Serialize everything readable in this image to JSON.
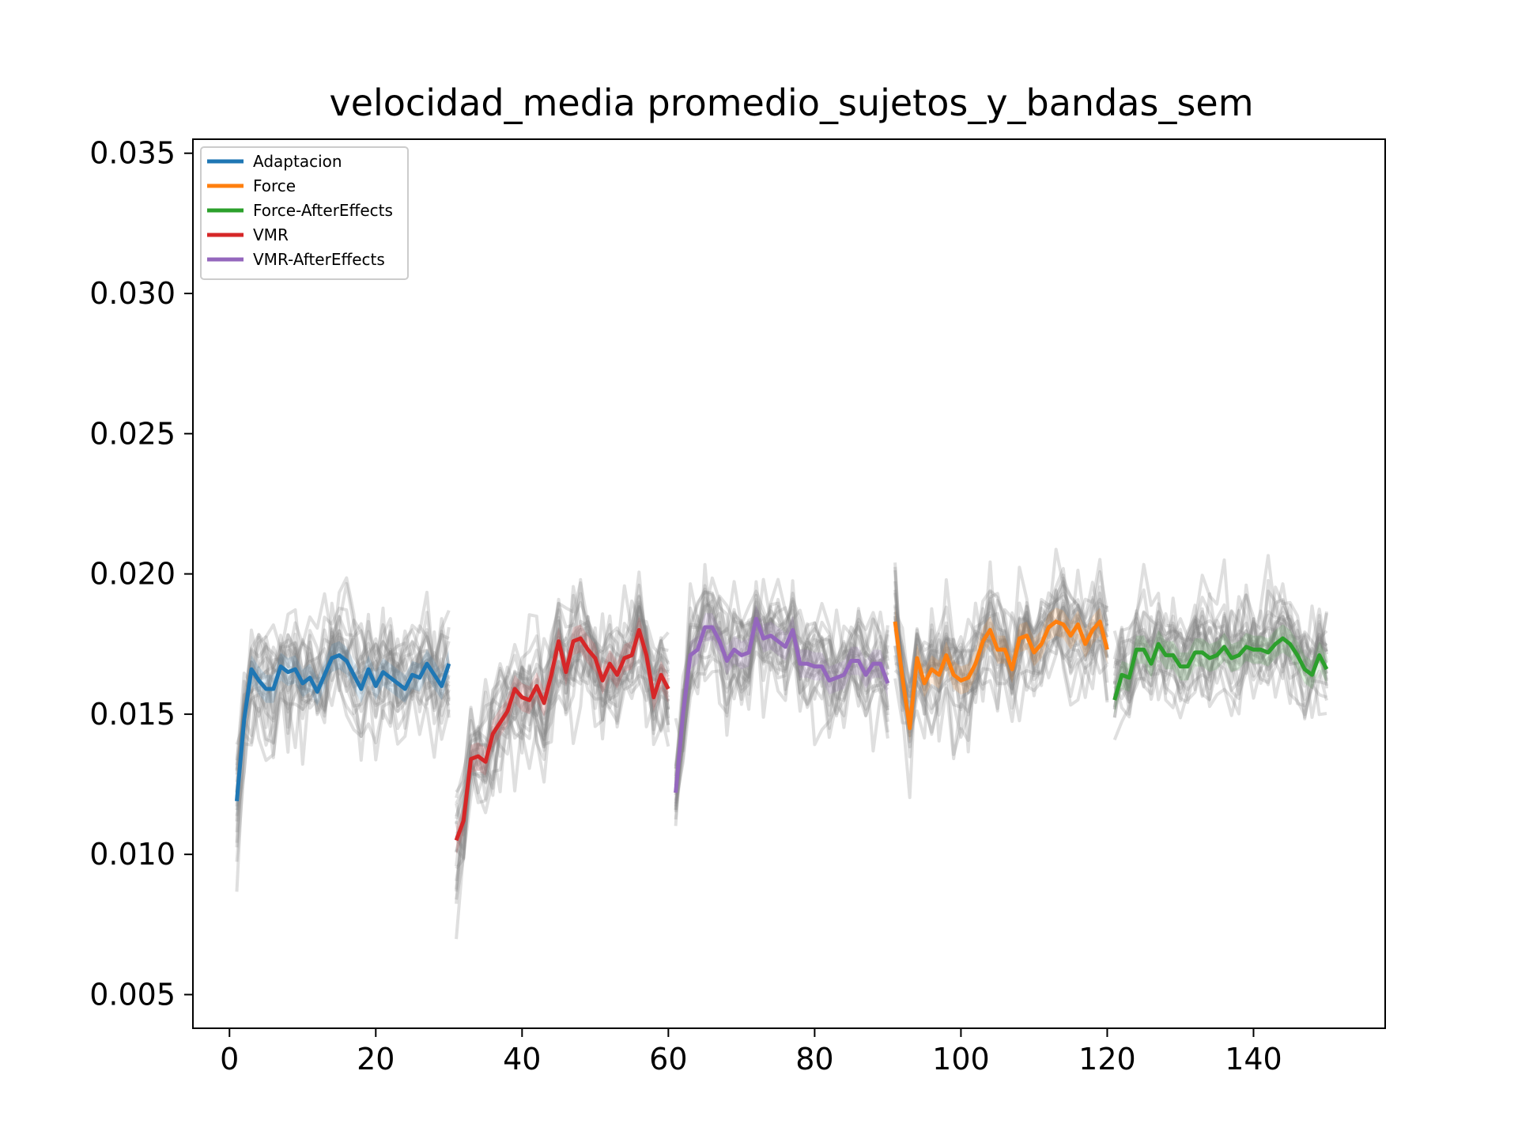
{
  "chart_data": {
    "type": "line",
    "title": "velocidad_media promedio_sujetos_y_bandas_sem",
    "xlabel": "",
    "ylabel": "",
    "xlim": [
      -5,
      158
    ],
    "ylim": [
      0.0038,
      0.0355
    ],
    "xticks": [
      0,
      20,
      40,
      60,
      80,
      100,
      120,
      140
    ],
    "xtick_labels": [
      "0",
      "20",
      "40",
      "60",
      "80",
      "100",
      "120",
      "140"
    ],
    "yticks": [
      0.005,
      0.01,
      0.015,
      0.02,
      0.025,
      0.03,
      0.035
    ],
    "ytick_labels": [
      "0.005",
      "0.010",
      "0.015",
      "0.020",
      "0.025",
      "0.030",
      "0.035"
    ],
    "grid": false,
    "legend_position": "top-left",
    "background_lines": {
      "color": "#808080",
      "description_count": 22,
      "segments": [
        [
          1,
          30
        ],
        [
          31,
          60
        ],
        [
          61,
          90
        ],
        [
          91,
          120
        ],
        [
          121,
          150
        ]
      ]
    },
    "series": [
      {
        "name": "Adaptacion",
        "color": "#1f77b4",
        "x": [
          1,
          2,
          3,
          4,
          5,
          6,
          7,
          8,
          9,
          10,
          11,
          12,
          13,
          14,
          15,
          16,
          17,
          18,
          19,
          20,
          21,
          22,
          23,
          24,
          25,
          26,
          27,
          28,
          29,
          30
        ],
        "y": [
          0.0119,
          0.0148,
          0.0166,
          0.0162,
          0.0159,
          0.0159,
          0.0167,
          0.0165,
          0.0166,
          0.0161,
          0.0163,
          0.0158,
          0.0164,
          0.017,
          0.0171,
          0.0169,
          0.0164,
          0.0159,
          0.0166,
          0.016,
          0.0165,
          0.0163,
          0.0161,
          0.0159,
          0.0164,
          0.0163,
          0.0168,
          0.0164,
          0.016,
          0.0168
        ]
      },
      {
        "name": "Force",
        "color": "#ff7f0e",
        "x": [
          91,
          92,
          93,
          94,
          95,
          96,
          97,
          98,
          99,
          100,
          101,
          102,
          103,
          104,
          105,
          106,
          107,
          108,
          109,
          110,
          111,
          112,
          113,
          114,
          115,
          116,
          117,
          118,
          119,
          120
        ],
        "y": [
          0.0183,
          0.0163,
          0.0145,
          0.017,
          0.0161,
          0.0166,
          0.0164,
          0.0171,
          0.0164,
          0.0162,
          0.0163,
          0.0168,
          0.0176,
          0.018,
          0.0173,
          0.0173,
          0.0166,
          0.0177,
          0.0178,
          0.0172,
          0.0175,
          0.0181,
          0.0183,
          0.0182,
          0.0178,
          0.0182,
          0.0175,
          0.018,
          0.0183,
          0.0173
        ]
      },
      {
        "name": "Force-AfterEffects",
        "color": "#2ca02c",
        "x": [
          121,
          122,
          123,
          124,
          125,
          126,
          127,
          128,
          129,
          130,
          131,
          132,
          133,
          134,
          135,
          136,
          137,
          138,
          139,
          140,
          141,
          142,
          143,
          144,
          145,
          146,
          147,
          148,
          149,
          150
        ],
        "y": [
          0.0155,
          0.0164,
          0.0163,
          0.0173,
          0.0173,
          0.0168,
          0.0175,
          0.0171,
          0.0171,
          0.0167,
          0.0167,
          0.0172,
          0.0172,
          0.017,
          0.0171,
          0.0174,
          0.017,
          0.0171,
          0.0174,
          0.0173,
          0.0173,
          0.0172,
          0.0175,
          0.0177,
          0.0175,
          0.0171,
          0.0166,
          0.0164,
          0.0171,
          0.0166
        ]
      },
      {
        "name": "VMR",
        "color": "#d62728",
        "x": [
          31,
          32,
          33,
          34,
          35,
          36,
          37,
          38,
          39,
          40,
          41,
          42,
          43,
          44,
          45,
          46,
          47,
          48,
          49,
          50,
          51,
          52,
          53,
          54,
          55,
          56,
          57,
          58,
          59,
          60
        ],
        "y": [
          0.0105,
          0.0112,
          0.0134,
          0.0135,
          0.0133,
          0.0143,
          0.0147,
          0.0151,
          0.0159,
          0.0156,
          0.0155,
          0.016,
          0.0154,
          0.0164,
          0.0176,
          0.0165,
          0.0176,
          0.0177,
          0.0173,
          0.017,
          0.0162,
          0.0168,
          0.0164,
          0.017,
          0.0171,
          0.018,
          0.0171,
          0.0156,
          0.0164,
          0.0159
        ]
      },
      {
        "name": "VMR-AfterEffects",
        "color": "#9467bd",
        "x": [
          61,
          62,
          63,
          64,
          65,
          66,
          67,
          68,
          69,
          70,
          71,
          72,
          73,
          74,
          75,
          76,
          77,
          78,
          79,
          80,
          81,
          82,
          83,
          84,
          85,
          86,
          87,
          88,
          89,
          90
        ],
        "y": [
          0.0122,
          0.015,
          0.0171,
          0.0173,
          0.0181,
          0.0181,
          0.0176,
          0.0169,
          0.0173,
          0.0171,
          0.0172,
          0.0184,
          0.0177,
          0.0178,
          0.0176,
          0.0174,
          0.018,
          0.0168,
          0.0168,
          0.0167,
          0.0167,
          0.0162,
          0.0163,
          0.0164,
          0.0169,
          0.0169,
          0.0164,
          0.0168,
          0.0168,
          0.0161
        ]
      }
    ]
  }
}
